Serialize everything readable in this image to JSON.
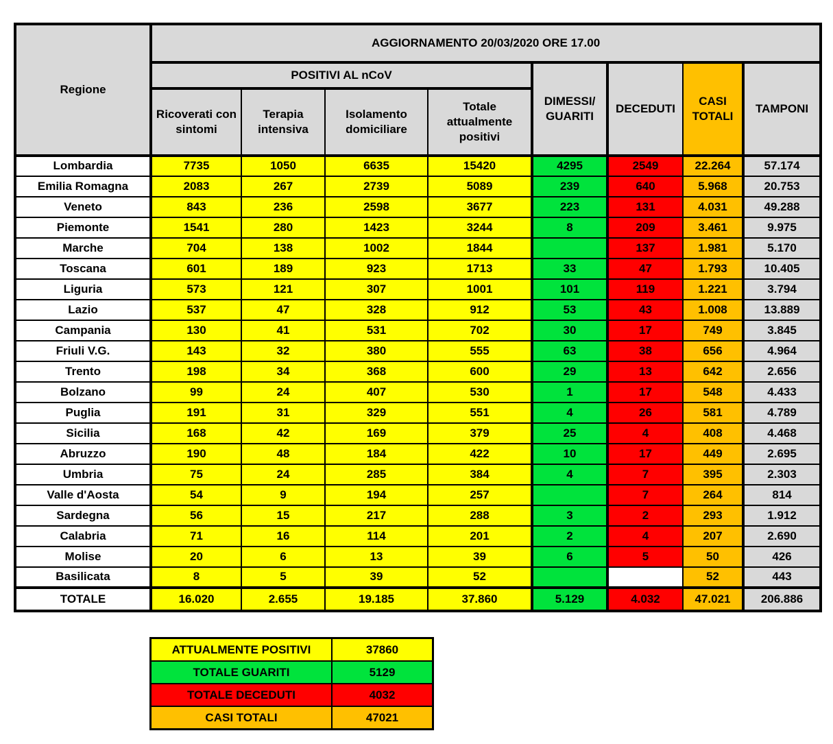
{
  "colors": {
    "yellow": "#FFFF00",
    "green": "#00E33C",
    "red": "#FF0000",
    "orange": "#FFC000",
    "grey": "#D9D9D9"
  },
  "header": {
    "title": "AGGIORNAMENTO 20/03/2020 ORE 17.00",
    "regione": "Regione",
    "positivi_group": "POSITIVI AL nCoV",
    "ricoverati": "Ricoverati con sintomi",
    "terapia": "Terapia intensiva",
    "isolamento": "Isolamento domiciliare",
    "totale_pos": "Totale attualmente positivi",
    "dimessi": "DIMESSI/ GUARITI",
    "deceduti": "DECEDUTI",
    "casi": "CASI TOTALI",
    "tamponi": "TAMPONI"
  },
  "chart_data": {
    "type": "table",
    "title": "AGGIORNAMENTO 20/03/2020 ORE 17.00",
    "columns": [
      "Regione",
      "Ricoverati con sintomi",
      "Terapia intensiva",
      "Isolamento domiciliare",
      "Totale attualmente positivi",
      "DIMESSI/GUARITI",
      "DECEDUTI",
      "CASI TOTALI",
      "TAMPONI"
    ],
    "rows": [
      {
        "region": "Lombardia",
        "values": [
          "7735",
          "1050",
          "6635",
          "15420",
          "4295",
          "2549",
          "22.264",
          "57.174"
        ]
      },
      {
        "region": "Emilia Romagna",
        "values": [
          "2083",
          "267",
          "2739",
          "5089",
          "239",
          "640",
          "5.968",
          "20.753"
        ]
      },
      {
        "region": "Veneto",
        "values": [
          "843",
          "236",
          "2598",
          "3677",
          "223",
          "131",
          "4.031",
          "49.288"
        ]
      },
      {
        "region": "Piemonte",
        "values": [
          "1541",
          "280",
          "1423",
          "3244",
          "8",
          "209",
          "3.461",
          "9.975"
        ]
      },
      {
        "region": "Marche",
        "values": [
          "704",
          "138",
          "1002",
          "1844",
          "",
          "137",
          "1.981",
          "5.170"
        ]
      },
      {
        "region": "Toscana",
        "values": [
          "601",
          "189",
          "923",
          "1713",
          "33",
          "47",
          "1.793",
          "10.405"
        ]
      },
      {
        "region": "Liguria",
        "values": [
          "573",
          "121",
          "307",
          "1001",
          "101",
          "119",
          "1.221",
          "3.794"
        ]
      },
      {
        "region": "Lazio",
        "values": [
          "537",
          "47",
          "328",
          "912",
          "53",
          "43",
          "1.008",
          "13.889"
        ]
      },
      {
        "region": "Campania",
        "values": [
          "130",
          "41",
          "531",
          "702",
          "30",
          "17",
          "749",
          "3.845"
        ]
      },
      {
        "region": "Friuli V.G.",
        "values": [
          "143",
          "32",
          "380",
          "555",
          "63",
          "38",
          "656",
          "4.964"
        ]
      },
      {
        "region": "Trento",
        "values": [
          "198",
          "34",
          "368",
          "600",
          "29",
          "13",
          "642",
          "2.656"
        ]
      },
      {
        "region": "Bolzano",
        "values": [
          "99",
          "24",
          "407",
          "530",
          "1",
          "17",
          "548",
          "4.433"
        ]
      },
      {
        "region": "Puglia",
        "values": [
          "191",
          "31",
          "329",
          "551",
          "4",
          "26",
          "581",
          "4.789"
        ]
      },
      {
        "region": "Sicilia",
        "values": [
          "168",
          "42",
          "169",
          "379",
          "25",
          "4",
          "408",
          "4.468"
        ]
      },
      {
        "region": "Abruzzo",
        "values": [
          "190",
          "48",
          "184",
          "422",
          "10",
          "17",
          "449",
          "2.695"
        ]
      },
      {
        "region": "Umbria",
        "values": [
          "75",
          "24",
          "285",
          "384",
          "4",
          "7",
          "395",
          "2.303"
        ]
      },
      {
        "region": "Valle d'Aosta",
        "values": [
          "54",
          "9",
          "194",
          "257",
          "",
          "7",
          "264",
          "814"
        ]
      },
      {
        "region": "Sardegna",
        "values": [
          "56",
          "15",
          "217",
          "288",
          "3",
          "2",
          "293",
          "1.912"
        ]
      },
      {
        "region": "Calabria",
        "values": [
          "71",
          "16",
          "114",
          "201",
          "2",
          "4",
          "207",
          "2.690"
        ]
      },
      {
        "region": "Molise",
        "values": [
          "20",
          "6",
          "13",
          "39",
          "6",
          "5",
          "50",
          "426"
        ]
      },
      {
        "region": "Basilicata",
        "values": [
          "8",
          "5",
          "39",
          "52",
          "",
          "",
          "52",
          "443"
        ],
        "deceduti_white": true
      }
    ],
    "totals": {
      "label": "TOTALE",
      "values": [
        "16.020",
        "2.655",
        "19.185",
        "37.860",
        "5.129",
        "4.032",
        "47.021",
        "206.886"
      ]
    }
  },
  "summary": [
    {
      "label": "ATTUALMENTE POSITIVI",
      "value": "37860",
      "color_key": "yellow"
    },
    {
      "label": "TOTALE GUARITI",
      "value": "5129",
      "color_key": "green"
    },
    {
      "label": "TOTALE DECEDUTI",
      "value": "4032",
      "color_key": "red"
    },
    {
      "label": "CASI TOTALI",
      "value": "47021",
      "color_key": "orange"
    }
  ]
}
